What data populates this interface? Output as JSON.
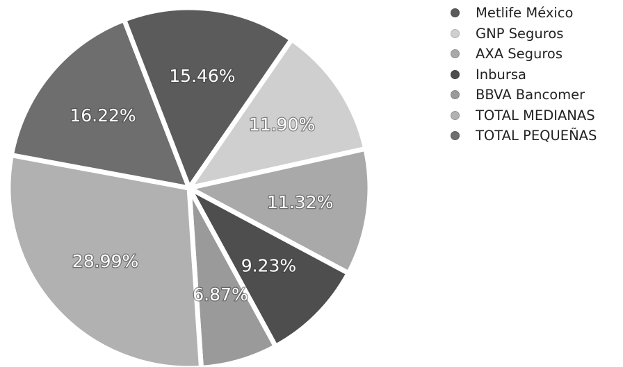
{
  "chart_data": {
    "type": "pie",
    "title": "",
    "value_suffix": "%",
    "legend_position": "top-right",
    "slices": [
      {
        "name": "Metlife México",
        "value": 15.46,
        "label": "15.46%",
        "color": "#5b5b5b"
      },
      {
        "name": "GNP Seguros",
        "value": 11.9,
        "label": "11.90%",
        "color": "#cfcfcf"
      },
      {
        "name": "AXA Seguros",
        "value": 11.32,
        "label": "11.32%",
        "color": "#a9a9a9"
      },
      {
        "name": "Inbursa",
        "value": 9.23,
        "label": "9.23%",
        "color": "#4e4e4e"
      },
      {
        "name": "BBVA Bancomer",
        "value": 6.87,
        "label": "6.87%",
        "color": "#9a9a9a"
      },
      {
        "name": "TOTAL MEDIANAS",
        "value": 28.99,
        "label": "28.99%",
        "color": "#b1b1b1"
      },
      {
        "name": "TOTAL PEQUEÑAS",
        "value": 16.22,
        "label": "16.22%",
        "color": "#6e6e6e"
      }
    ]
  }
}
